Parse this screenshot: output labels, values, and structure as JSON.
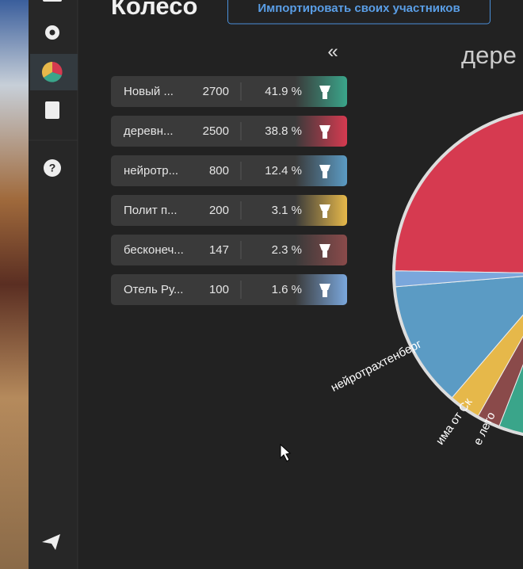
{
  "header": {
    "title": "Колесо",
    "import_button": "Импортировать своих участников"
  },
  "collapse": "«",
  "wheel_title": "дере",
  "items": [
    {
      "name": "Новый ...",
      "amount": 2700,
      "percent": "41.9 %",
      "color": "#3aa58a"
    },
    {
      "name": "деревн...",
      "amount": 2500,
      "percent": "38.8 %",
      "color": "#d63a50"
    },
    {
      "name": "нейротр...",
      "amount": 800,
      "percent": "12.4 %",
      "color": "#5b9bc4"
    },
    {
      "name": "Полит п...",
      "amount": 200,
      "percent": "3.1 %",
      "color": "#e6b84a"
    },
    {
      "name": "бесконеч...",
      "amount": 147,
      "percent": "2.3 %",
      "color": "#8a4a4a"
    },
    {
      "name": "Отель Ру...",
      "amount": 100,
      "percent": "1.6 %",
      "color": "#7aa7dc"
    }
  ],
  "wheel_labels": [
    "нейротрахтенберг",
    "има от Ск",
    "е лето"
  ]
}
